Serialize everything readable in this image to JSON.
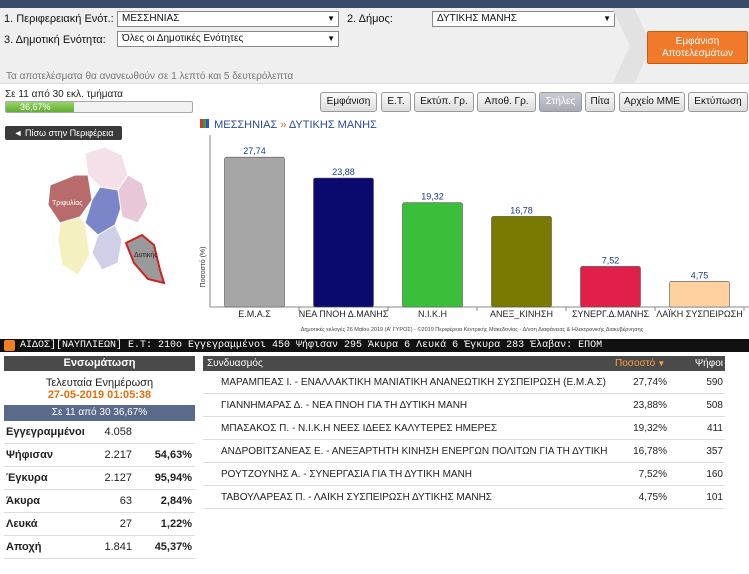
{
  "form": {
    "region_label": "1. Περιφερειακή Ενότ.:",
    "region_value": "ΜΕΣΣΗΝΙΑΣ",
    "municipality_label": "2. Δήμος:",
    "municipality_value": "ΔΥΤΙΚΗΣ ΜΑΝΗΣ",
    "unit_label": "3. Δημοτική Ενότητα:",
    "unit_value": "Όλες οι Δημοτικές Ενότητες",
    "show_results_label": "Εμφάνιση Αποτελεσμάτων",
    "refresh_note": "Τα αποτελέσματα θα ανανεωθούν σε 1 λεπτό και 5 δευτερόλεπτα"
  },
  "progress": {
    "label": "Σε 11 από 30 εκλ. τμήματα",
    "text": "36,67%",
    "fraction": 0.3667
  },
  "toolbar": {
    "buttons": [
      "Εμφάνιση",
      "Ε.Τ.",
      "Εκτύπ. Γρ.",
      "Αποθ. Γρ.",
      "Στήλες",
      "Πίτα",
      "Αρχείο ΜΜΕ",
      "Εκτύπωση"
    ],
    "active": "Στήλες"
  },
  "back_label": "◄ Πίσω στην Περιφέρεια",
  "breadcrumb": {
    "region": "ΜΕΣΣΗΝΙΑΣ",
    "separator": "»",
    "municipality": "ΔΥΤΙΚΗΣ ΜΑΝΗΣ"
  },
  "map": {
    "labels": [
      "Τριφυλίας",
      "Δυτικής"
    ]
  },
  "chart_data": {
    "type": "bar",
    "categories": [
      "Ε.Μ.Α.Σ",
      "ΝΕΑ ΠΝΟΗ Δ.ΜΑΝΗΣ",
      "Ν.Ι.Κ.Η",
      "ΑΝΕΞ_ΚΙΝΗΣΗ",
      "ΣΥΝΕΡΓ.Δ.ΜΑΝΗΣ",
      "ΛΑΪΚΗ ΣΥΣΠΕΙΡΩΣΗ"
    ],
    "values": [
      27.74,
      23.88,
      19.32,
      16.78,
      7.52,
      4.75
    ],
    "value_labels": [
      "27,74",
      "23,88",
      "19,32",
      "16,78",
      "7,52",
      "4,75"
    ],
    "colors": [
      "#a6a6a6",
      "#0a0a6e",
      "#3bbf3b",
      "#7a7a00",
      "#e0204a",
      "#ffd0a0"
    ],
    "ylabel": "Ποσοστό (%)",
    "ylim": [
      0,
      30
    ],
    "footer": "Δημοτικές εκλογές 26 Μαΐου 2019 (Α' ΓΥΡΟΣ) - ©2019 Περιφέρεια Κεντρικής Μακεδονίας - Δ/νση Διαφάνειας & Ηλεκτρονικής Διακυβέρνησης"
  },
  "ticker": "ΑΙΔΟΣ][ΝΑΥΠΛΙΕΩΝ]  Ε.Τ: 210ο  Εγγεγραμμένοι 450  Ψήφισαν 295  Άκυρα 6  Λευκά 6  Έγκυρα 283  Έλαβαν: ΕΠΟΜ",
  "left_panel": {
    "header": "Ενσωμάτωση",
    "last_update_label": "Τελευταία Ενημέρωση",
    "last_update_time": "27-05-2019 01:05:38",
    "counted": "Σε 11 από  30    36,67%",
    "rows": [
      {
        "key": "Εγγεγραμμένοι",
        "value": "4.058",
        "pct": ""
      },
      {
        "key": "Ψήφισαν",
        "value": "2.217",
        "pct": "54,63%"
      },
      {
        "key": "Έγκυρα",
        "value": "2.127",
        "pct": "95,94%"
      },
      {
        "key": "Άκυρα",
        "value": "63",
        "pct": "2,84%"
      },
      {
        "key": "Λευκά",
        "value": "27",
        "pct": "1,22%"
      },
      {
        "key": "Αποχή",
        "value": "1.841",
        "pct": "45,37%"
      }
    ]
  },
  "table": {
    "col_name": "Συνδυασμός",
    "col_pct": "Ποσοστό",
    "col_votes": "Ψήφοι",
    "rows": [
      {
        "name": "ΜΑΡΑΜΠΕΑΣ Ι. - ΕΝΑΛΛΑΚΤΙΚΗ ΜΑΝΙΑΤΙΚΗ ΑΝΑΝΕΩΤΙΚΗ ΣΥΣΠΕΙΡΩΣΗ (Ε.Μ.Α.Σ)",
        "pct": "27,74%",
        "votes": "590"
      },
      {
        "name": "ΓΙΑΝΝΗΜΑΡΑΣ Δ. - ΝΕΑ ΠΝΟΗ ΓΙΑ ΤΗ ΔΥΤΙΚΗ ΜΑΝΗ",
        "pct": "23,88%",
        "votes": "508"
      },
      {
        "name": "ΜΠΑΣΑΚΟΣ Π. - Ν.Ι.Κ.Η ΝΕΕΣ ΙΔΕΕΣ ΚΑΛΥΤΕΡΕΣ ΗΜΕΡΕΣ",
        "pct": "19,32%",
        "votes": "411"
      },
      {
        "name": "ΑΝΔΡΟΒΙΤΣΑΝΕΑΣ Ε. - ΑΝΕΞΑΡΤΗΤΗ ΚΙΝΗΣΗ ΕΝΕΡΓΩΝ ΠΟΛΙΤΩΝ ΓΙΑ ΤΗ ΔΥΤΙΚΗ ΜΑΝΗ",
        "pct": "16,78%",
        "votes": "357"
      },
      {
        "name": "ΡΟΥΤΖΟΥΝΗΣ Α. - ΣΥΝΕΡΓΑΣΙΑ ΓΙΑ ΤΗ ΔΥΤΙΚΗ ΜΑΝΗ",
        "pct": "7,52%",
        "votes": "160"
      },
      {
        "name": "ΤΑΒΟΥΛΑΡΕΑΣ Π. - ΛΑΪΚΗ ΣΥΣΠΕΙΡΩΣΗ ΔΥΤΙΚΗΣ ΜΑΝΗΣ",
        "pct": "4,75%",
        "votes": "101"
      }
    ]
  }
}
